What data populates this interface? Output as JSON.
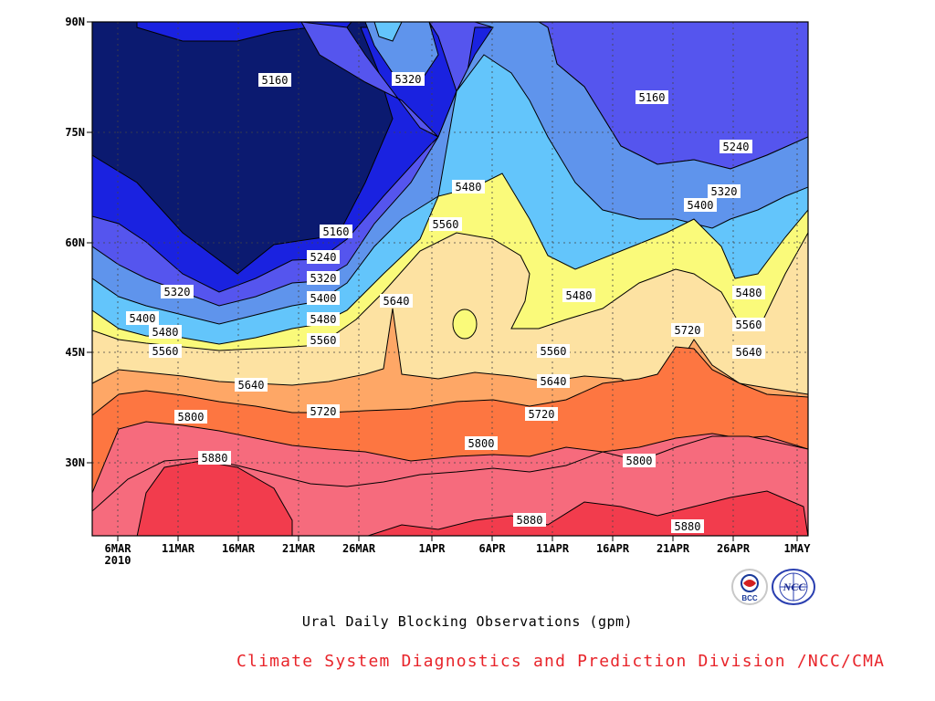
{
  "chart_data": {
    "type": "heatmap",
    "title": "",
    "xlabel": "",
    "ylabel": "",
    "x_ticks": [
      "6MAR",
      "11MAR",
      "16MAR",
      "21MAR",
      "26MAR",
      "1APR",
      "6APR",
      "11APR",
      "16APR",
      "21APR",
      "26APR",
      "1MAY"
    ],
    "x_year_label": "2010",
    "y_ticks": [
      "90N",
      "75N",
      "60N",
      "45N",
      "30N"
    ],
    "ylim": [
      "20N",
      "90N"
    ],
    "xlim": [
      "6MAR2010",
      "1MAY2010"
    ],
    "grid": true,
    "contour_levels": [
      5160,
      5240,
      5320,
      5400,
      5480,
      5560,
      5640,
      5720,
      5800,
      5880
    ],
    "contour_labels": [
      {
        "x": "~16MAR",
        "y": "78N",
        "value": 5160
      },
      {
        "x": "~18APR",
        "y": "75N",
        "value": 5160
      },
      {
        "x": "~28MAR",
        "y": "79N",
        "value": 5320
      },
      {
        "x": "~26APR",
        "y": "70N",
        "value": 5240
      },
      {
        "x": "~27APR",
        "y": "66N",
        "value": 5320
      },
      {
        "x": "~24APR",
        "y": "64N",
        "value": 5400
      },
      {
        "x": "~3APR",
        "y": "67N",
        "value": 5480
      },
      {
        "x": "~2APR",
        "y": "63N",
        "value": 5560
      },
      {
        "x": "~23MAR",
        "y": "61N",
        "value": 5160
      },
      {
        "x": "~23MAR",
        "y": "58N",
        "value": 5240
      },
      {
        "x": "~23MAR",
        "y": "55N",
        "value": 5320
      },
      {
        "x": "~23MAR",
        "y": "53N",
        "value": 5400
      },
      {
        "x": "~23MAR",
        "y": "50N",
        "value": 5480
      },
      {
        "x": "~23MAR",
        "y": "47N",
        "value": 5560
      },
      {
        "x": "~28MAR",
        "y": "52N",
        "value": 5640
      },
      {
        "x": "~12MAR",
        "y": "54N",
        "value": 5320
      },
      {
        "x": "~8MAR",
        "y": "50N",
        "value": 5400
      },
      {
        "x": "~9MAR",
        "y": "48N",
        "value": 5480
      },
      {
        "x": "~9MAR",
        "y": "45N",
        "value": 5560
      },
      {
        "x": "~17MAR",
        "y": "41N",
        "value": 5640
      },
      {
        "x": "~23MAR",
        "y": "38N",
        "value": 5720
      },
      {
        "x": "~12MAR",
        "y": "36N",
        "value": 5800
      },
      {
        "x": "~15MAR",
        "y": "31N",
        "value": 5880
      },
      {
        "x": "~12APR",
        "y": "54N",
        "value": 5480
      },
      {
        "x": "~11APR",
        "y": "45N",
        "value": 5560
      },
      {
        "x": "~12APR",
        "y": "42N",
        "value": 5640
      },
      {
        "x": "~11APR",
        "y": "37N",
        "value": 5720
      },
      {
        "x": "~5APR",
        "y": "33N",
        "value": 5800
      },
      {
        "x": "~19APR",
        "y": "31N",
        "value": 5800
      },
      {
        "x": "~8APR",
        "y": "22N",
        "value": 5880
      },
      {
        "x": "~23APR",
        "y": "21N",
        "value": 5880
      },
      {
        "x": "~22APR",
        "y": "48N",
        "value": 5720
      },
      {
        "x": "~28APR",
        "y": "54N",
        "value": 5480
      },
      {
        "x": "~28APR",
        "y": "50N",
        "value": 5560
      },
      {
        "x": "~28APR",
        "y": "45N",
        "value": 5640
      }
    ],
    "band_colors": [
      "#0b1a70",
      "#1a22e0",
      "#5555ee",
      "#5f94ec",
      "#63c5fb",
      "#fafa7a",
      "#fde2a2",
      "#fea766",
      "#fd7641",
      "#f66b7d",
      "#f23c4d"
    ]
  },
  "caption": "Ural Daily Blocking Observations (gpm)",
  "credit": "Climate System Diagnostics and Prediction Division /NCC/CMA",
  "logos": [
    {
      "name": "bcc-logo",
      "text": "BCC"
    },
    {
      "name": "ncc-logo",
      "text": "NCC"
    }
  ]
}
